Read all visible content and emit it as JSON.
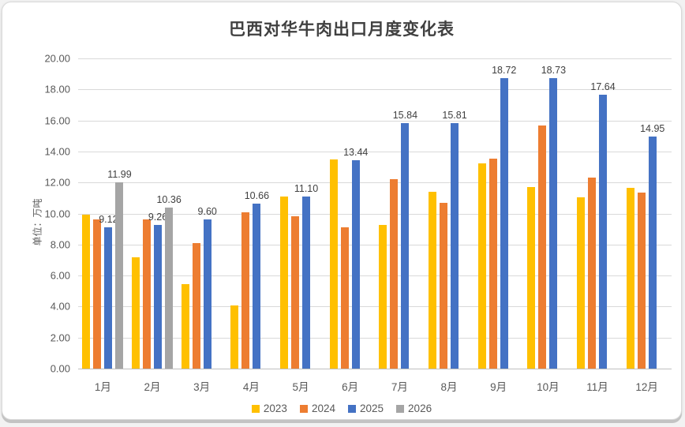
{
  "chart_data": {
    "type": "bar",
    "title": "巴西对华牛肉出口月度变化表",
    "y_axis_title": "单位：万吨",
    "xlabel": "",
    "ylabel": "单位：万吨",
    "categories": [
      "1月",
      "2月",
      "3月",
      "4月",
      "5月",
      "6月",
      "7月",
      "8月",
      "9月",
      "10月",
      "11月",
      "12月"
    ],
    "series": [
      {
        "name": "2023",
        "color": "#FFC000",
        "labeled": false,
        "values": [
          9.9,
          7.2,
          5.45,
          4.05,
          11.1,
          13.5,
          9.25,
          11.4,
          13.25,
          11.7,
          11.05,
          11.65
        ]
      },
      {
        "name": "2024",
        "color": "#ED7D31",
        "labeled": false,
        "values": [
          9.6,
          9.6,
          8.1,
          10.1,
          9.8,
          9.1,
          12.2,
          10.7,
          13.55,
          15.7,
          12.3,
          11.35
        ]
      },
      {
        "name": "2025",
        "color": "#4472C4",
        "labeled": true,
        "values": [
          9.12,
          9.26,
          9.6,
          10.66,
          11.1,
          13.44,
          15.84,
          15.81,
          18.72,
          18.73,
          17.64,
          14.95
        ]
      },
      {
        "name": "2026",
        "color": "#A5A5A5",
        "labeled": true,
        "values": [
          11.99,
          10.36,
          null,
          null,
          null,
          null,
          null,
          null,
          null,
          null,
          null,
          null
        ]
      }
    ],
    "data_labels_shown": [
      "9.12",
      "9.26",
      "9.60",
      "10.66",
      "11.10",
      "13.44",
      "15.84",
      "15.81",
      "18.72",
      "18.73",
      "17.64",
      "14.95",
      "11.99",
      "10.36"
    ],
    "ylim": [
      0,
      20
    ],
    "y_tick_step": 2,
    "y_tick_labels": [
      "0.00",
      "2.00",
      "4.00",
      "6.00",
      "8.00",
      "10.00",
      "12.00",
      "14.00",
      "16.00",
      "18.00",
      "20.00"
    ],
    "grid": true,
    "legend_position": "bottom",
    "legend_entries": [
      "2023",
      "2024",
      "2025",
      "2026"
    ]
  },
  "colors": {
    "series_2023": "#FFC000",
    "series_2024": "#ED7D31",
    "series_2025": "#4472C4",
    "series_2026": "#A5A5A5",
    "gridline": "#d9d9d9",
    "text": "#595959",
    "title_text": "#404040",
    "card_background": "#ffffff"
  }
}
